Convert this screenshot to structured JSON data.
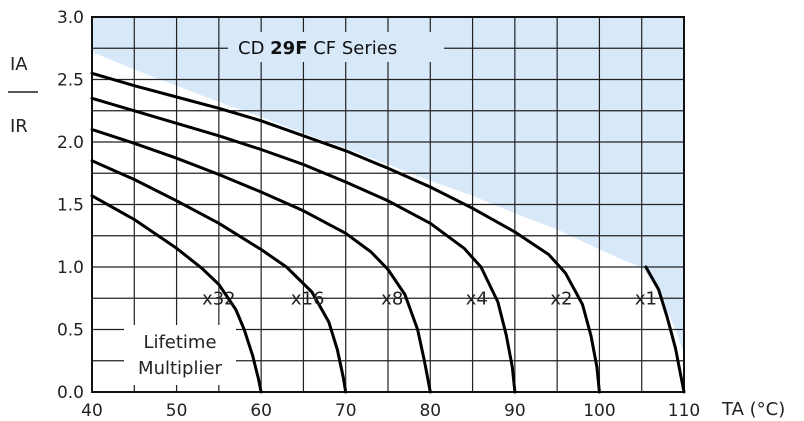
{
  "chart_data": {
    "type": "line",
    "title_parts": [
      "CD ",
      "29F",
      " CF Series"
    ],
    "ylabel_top": "IA",
    "ylabel_bottom": "IR",
    "xlabel": "TA (°C)",
    "xlim": [
      40,
      110
    ],
    "ylim": [
      0,
      3
    ],
    "x_ticks": [
      "40",
      "50",
      "60",
      "70",
      "80",
      "90",
      "100",
      "110"
    ],
    "y_ticks": [
      "0.0",
      "0.5",
      "1.0",
      "1.5",
      "2.0",
      "2.5",
      "3.0"
    ],
    "grid": true,
    "annotation": [
      "Lifetime",
      "Multiplier"
    ],
    "colors": {
      "region": "#d7e9f9",
      "curve": "#000000",
      "grid": "#222222"
    },
    "region_boundary": [
      [
        40,
        2.72
      ],
      [
        45,
        2.58
      ],
      [
        50,
        2.45
      ],
      [
        55,
        2.32
      ],
      [
        60,
        2.2
      ],
      [
        65,
        2.07
      ],
      [
        70,
        1.95
      ],
      [
        75,
        1.82
      ],
      [
        80,
        1.69
      ],
      [
        85,
        1.57
      ],
      [
        90,
        1.43
      ],
      [
        95,
        1.3
      ],
      [
        100,
        1.14
      ],
      [
        103,
        1.05
      ],
      [
        105,
        1.0
      ],
      [
        107,
        0.8
      ],
      [
        109,
        0.5
      ],
      [
        110,
        0.3
      ]
    ],
    "series": [
      {
        "name": "x32",
        "label_at": [
          55,
          0.75
        ],
        "points": [
          [
            40,
            1.57
          ],
          [
            45,
            1.38
          ],
          [
            50,
            1.15
          ],
          [
            53,
            0.99
          ],
          [
            55,
            0.86
          ],
          [
            57,
            0.66
          ],
          [
            58,
            0.5
          ],
          [
            59,
            0.29
          ],
          [
            59.7,
            0.1
          ],
          [
            60,
            0
          ]
        ]
      },
      {
        "name": "x16",
        "label_at": [
          65.5,
          0.75
        ],
        "points": [
          [
            40,
            1.85
          ],
          [
            45,
            1.7
          ],
          [
            50,
            1.53
          ],
          [
            55,
            1.35
          ],
          [
            60,
            1.14
          ],
          [
            63,
            1.0
          ],
          [
            66,
            0.8
          ],
          [
            68,
            0.56
          ],
          [
            69,
            0.34
          ],
          [
            69.7,
            0.12
          ],
          [
            70,
            0
          ]
        ]
      },
      {
        "name": "x8",
        "label_at": [
          75.5,
          0.75
        ],
        "points": [
          [
            40,
            2.1
          ],
          [
            45,
            1.99
          ],
          [
            50,
            1.87
          ],
          [
            55,
            1.74
          ],
          [
            60,
            1.6
          ],
          [
            65,
            1.45
          ],
          [
            70,
            1.27
          ],
          [
            73,
            1.12
          ],
          [
            75,
            0.98
          ],
          [
            77,
            0.78
          ],
          [
            78.5,
            0.5
          ],
          [
            79.3,
            0.25
          ],
          [
            80,
            0
          ]
        ]
      },
      {
        "name": "x4",
        "label_at": [
          85.5,
          0.75
        ],
        "points": [
          [
            40,
            2.35
          ],
          [
            45,
            2.25
          ],
          [
            50,
            2.15
          ],
          [
            55,
            2.05
          ],
          [
            60,
            1.94
          ],
          [
            65,
            1.82
          ],
          [
            70,
            1.68
          ],
          [
            75,
            1.53
          ],
          [
            80,
            1.35
          ],
          [
            84,
            1.15
          ],
          [
            86,
            1.0
          ],
          [
            88,
            0.72
          ],
          [
            89,
            0.45
          ],
          [
            89.7,
            0.2
          ],
          [
            90,
            0
          ]
        ]
      },
      {
        "name": "x2",
        "label_at": [
          95.5,
          0.75
        ],
        "points": [
          [
            40,
            2.55
          ],
          [
            45,
            2.45
          ],
          [
            50,
            2.36
          ],
          [
            55,
            2.27
          ],
          [
            60,
            2.17
          ],
          [
            65,
            2.05
          ],
          [
            70,
            1.93
          ],
          [
            75,
            1.79
          ],
          [
            80,
            1.64
          ],
          [
            85,
            1.47
          ],
          [
            90,
            1.28
          ],
          [
            94,
            1.1
          ],
          [
            96,
            0.95
          ],
          [
            98,
            0.7
          ],
          [
            99,
            0.45
          ],
          [
            99.7,
            0.2
          ],
          [
            100,
            0
          ]
        ]
      },
      {
        "name": "x1",
        "label_at": [
          105.5,
          0.75
        ],
        "points": [
          [
            105.5,
            1.0
          ],
          [
            107,
            0.82
          ],
          [
            108,
            0.6
          ],
          [
            109,
            0.35
          ],
          [
            110,
            0
          ]
        ]
      }
    ]
  }
}
